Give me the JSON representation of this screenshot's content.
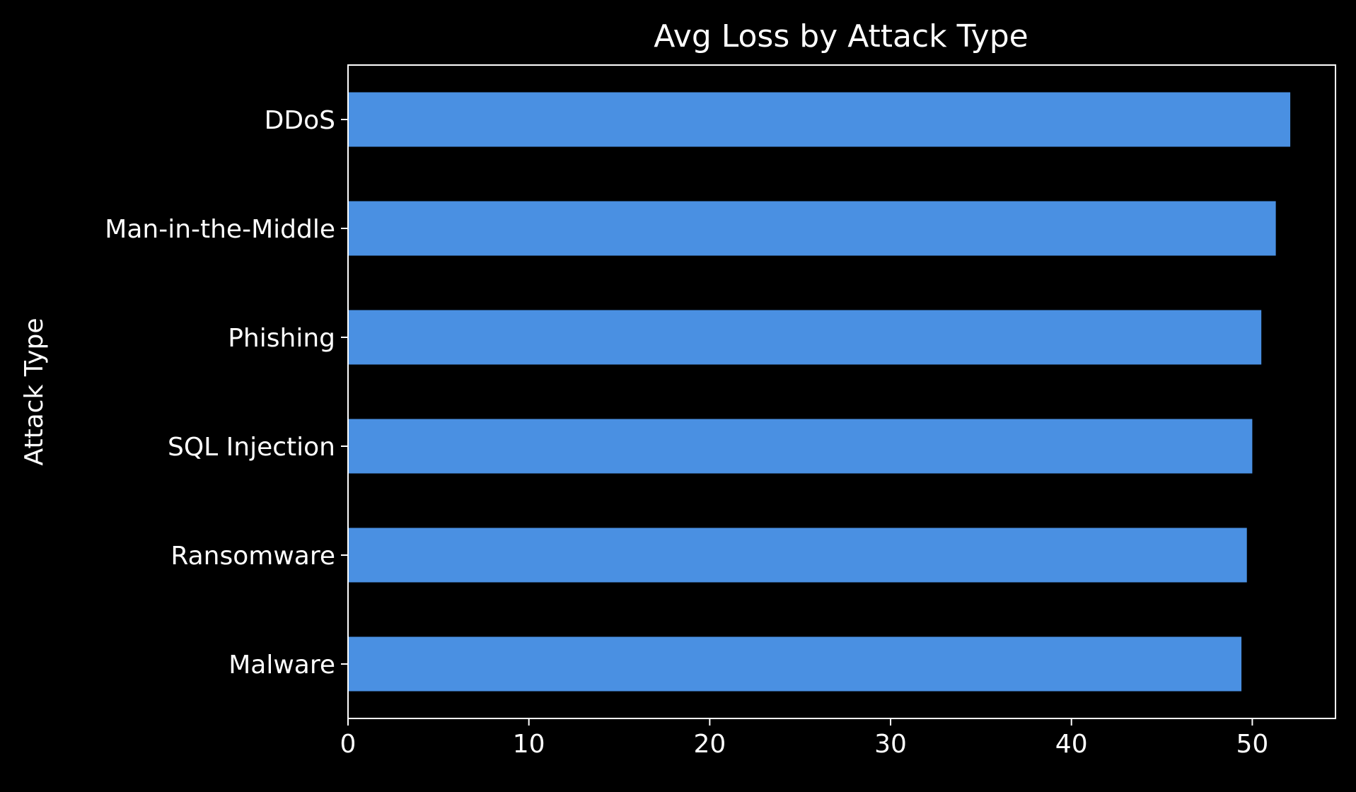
{
  "chart_data": {
    "type": "bar",
    "orientation": "horizontal",
    "title": "Avg Loss by Attack Type",
    "xlabel": "",
    "ylabel": "Attack Type",
    "categories": [
      "DDoS",
      "Man-in-the-Middle",
      "Phishing",
      "SQL Injection",
      "Ransomware",
      "Malware"
    ],
    "values": [
      52.1,
      51.3,
      50.5,
      50.0,
      49.7,
      49.4
    ],
    "xlim": [
      0,
      54.6
    ],
    "xticks": [
      0,
      10,
      20,
      30,
      40,
      50
    ],
    "grid": false,
    "colors": {
      "background": "#000000",
      "bar": "#4a90e2",
      "axis": "#ffffff",
      "text": "#ffffff"
    }
  }
}
